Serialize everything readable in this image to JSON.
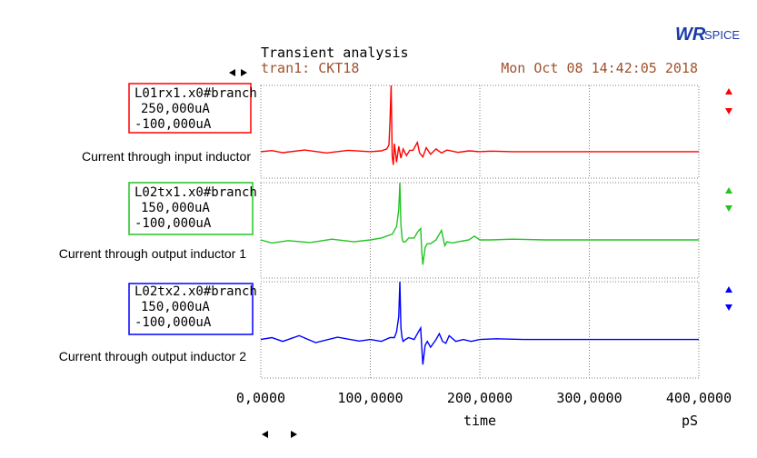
{
  "header": {
    "title": "Transient analysis",
    "plot_name": "tran1: CKT18",
    "timestamp": "Mon Oct 08 14:42:05 2018",
    "brand_logo_text": "WRSPICE",
    "brand_logo_big": "WR",
    "brand_logo_small": "SPICE"
  },
  "colors": {
    "red": "#ff0000",
    "green": "#22c422",
    "blue": "#0000ff",
    "title_text": "#000000",
    "plot_info_text": "#a0522d",
    "logo": "#1a3aa8",
    "grid": "#7f7f7f"
  },
  "annotations": [
    "Current through input inductor",
    "Current through output inductor 1",
    "Current through output inductor 2"
  ],
  "chart_data": {
    "type": "line",
    "xlabel": "time",
    "xunit": "pS",
    "xlim": [
      0,
      400000
    ],
    "xticks": [
      0,
      100000,
      200000,
      300000,
      400000
    ],
    "xtick_labels": [
      "0,0000",
      "100,0000",
      "200,0000",
      "300,0000",
      "400,0000"
    ],
    "panels": [
      {
        "name": "L01rx1.x0#branch",
        "ymax_label": "250,000uA",
        "ymin_label": "-100,000uA",
        "ylim": [
          -100000,
          250000
        ],
        "color": "#ff0000",
        "x": [
          0,
          10000,
          20000,
          40000,
          60000,
          80000,
          100000,
          110000,
          115000,
          117000,
          118000,
          119000,
          120000,
          121000,
          122000,
          124000,
          126000,
          128000,
          130000,
          133000,
          136000,
          139000,
          141000,
          143000,
          145000,
          148000,
          151000,
          155000,
          160000,
          165000,
          170000,
          180000,
          190000,
          200000,
          210000,
          230000,
          280000,
          340000,
          400000
        ],
        "y": [
          0,
          4000,
          -4000,
          6000,
          -5000,
          5000,
          0,
          3000,
          10000,
          25000,
          120000,
          250000,
          -20000,
          -50000,
          30000,
          -40000,
          20000,
          -25000,
          10000,
          -15000,
          5000,
          5000,
          20000,
          35000,
          -5000,
          -20000,
          15000,
          -10000,
          10000,
          -5000,
          6000,
          -3000,
          3000,
          0,
          2000,
          0,
          0,
          0,
          0
        ]
      },
      {
        "name": "L02tx1.x0#branch",
        "ymax_label": "150,000uA",
        "ymin_label": "-100,000uA",
        "ylim": [
          -100000,
          150000
        ],
        "color": "#22c422",
        "x": [
          0,
          10000,
          25000,
          45000,
          65000,
          85000,
          100000,
          110000,
          120000,
          124000,
          126000,
          127000,
          128000,
          129000,
          130000,
          132000,
          135000,
          140000,
          143000,
          146000,
          147000,
          148000,
          150000,
          152000,
          155000,
          160000,
          163000,
          165000,
          168000,
          170000,
          175000,
          180000,
          190000,
          195000,
          200000,
          210000,
          230000,
          260000,
          300000,
          350000,
          400000
        ],
        "y": [
          0,
          -8000,
          -2000,
          -7000,
          2000,
          -5000,
          0,
          5000,
          15000,
          35000,
          80000,
          150000,
          40000,
          5000,
          -5000,
          -5000,
          5000,
          5000,
          20000,
          30000,
          -30000,
          -65000,
          -20000,
          -10000,
          -10000,
          0,
          15000,
          25000,
          -15000,
          -5000,
          -8000,
          -5000,
          0,
          10000,
          0,
          0,
          2000,
          0,
          0,
          0,
          0
        ]
      },
      {
        "name": "L02tx2.x0#branch",
        "ymax_label": "150,000uA",
        "ymin_label": "-100,000uA",
        "ylim": [
          -100000,
          150000
        ],
        "color": "#0000ff",
        "x": [
          0,
          10000,
          20000,
          35000,
          50000,
          70000,
          90000,
          100000,
          110000,
          118000,
          122000,
          124000,
          126000,
          127000,
          128000,
          129000,
          130000,
          132000,
          135000,
          140000,
          143000,
          146000,
          147000,
          148000,
          150000,
          152000,
          155000,
          160000,
          163000,
          166000,
          169000,
          172000,
          178000,
          185000,
          192000,
          200000,
          215000,
          240000,
          280000,
          330000,
          400000
        ],
        "y": [
          0,
          5000,
          -5000,
          10000,
          -8000,
          6000,
          -4000,
          0,
          -5000,
          5000,
          5000,
          20000,
          60000,
          150000,
          30000,
          5000,
          -5000,
          0,
          5000,
          0,
          15000,
          30000,
          -20000,
          -65000,
          -15000,
          -5000,
          -20000,
          0,
          15000,
          -5000,
          -10000,
          10000,
          -5000,
          0,
          -5000,
          0,
          2000,
          0,
          0,
          0,
          0
        ]
      }
    ]
  }
}
